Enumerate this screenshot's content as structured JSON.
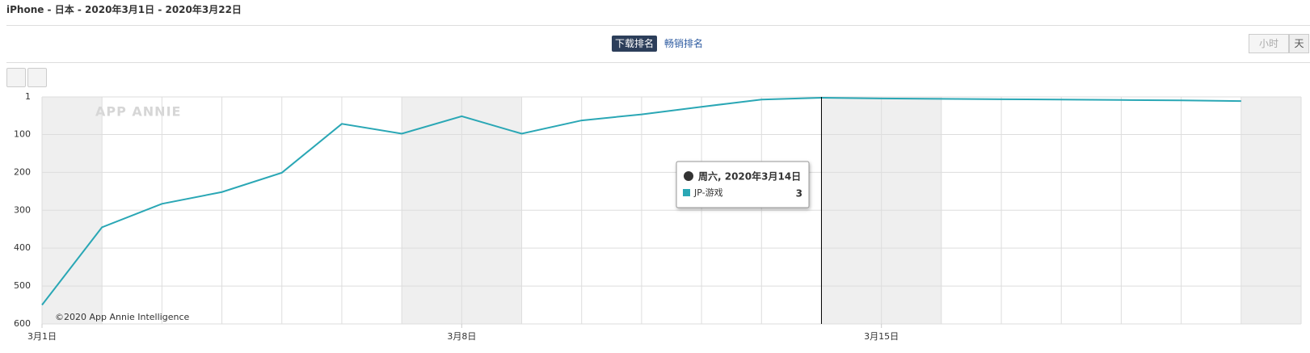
{
  "header": {
    "title": "iPhone - 日本 - 2020年3月1日 - 2020年3月22日",
    "tabs": [
      "下载排名",
      "畅销排名"
    ],
    "granularity": [
      "小时",
      "天"
    ]
  },
  "chart_data": {
    "type": "line",
    "watermark": "APP ANNIE",
    "copyright": "©2020 App Annie Intelligence",
    "x": [
      1,
      2,
      3,
      4,
      5,
      6,
      7,
      8,
      9,
      10,
      11,
      12,
      13,
      14,
      15,
      16,
      17,
      18,
      19,
      20,
      21
    ],
    "xlim": [
      1,
      22
    ],
    "xticks": [
      {
        "value": 1,
        "label": "3月1日"
      },
      {
        "value": 8,
        "label": "3月8日"
      },
      {
        "value": 15,
        "label": "3月15日"
      }
    ],
    "ylim": [
      600,
      1
    ],
    "yticks": [
      1,
      100,
      200,
      300,
      400,
      500,
      600
    ],
    "grid": true,
    "series": [
      {
        "name": "JP-游戏",
        "color": "#2aa7b5",
        "values": [
          550,
          345,
          283,
          252,
          201,
          72,
          98,
          52,
          98,
          63,
          47,
          27,
          8,
          3,
          5,
          6,
          7,
          8,
          9,
          10,
          12
        ]
      }
    ],
    "tooltip": {
      "title": "周六, 2020年3月14日",
      "index": 13
    }
  }
}
